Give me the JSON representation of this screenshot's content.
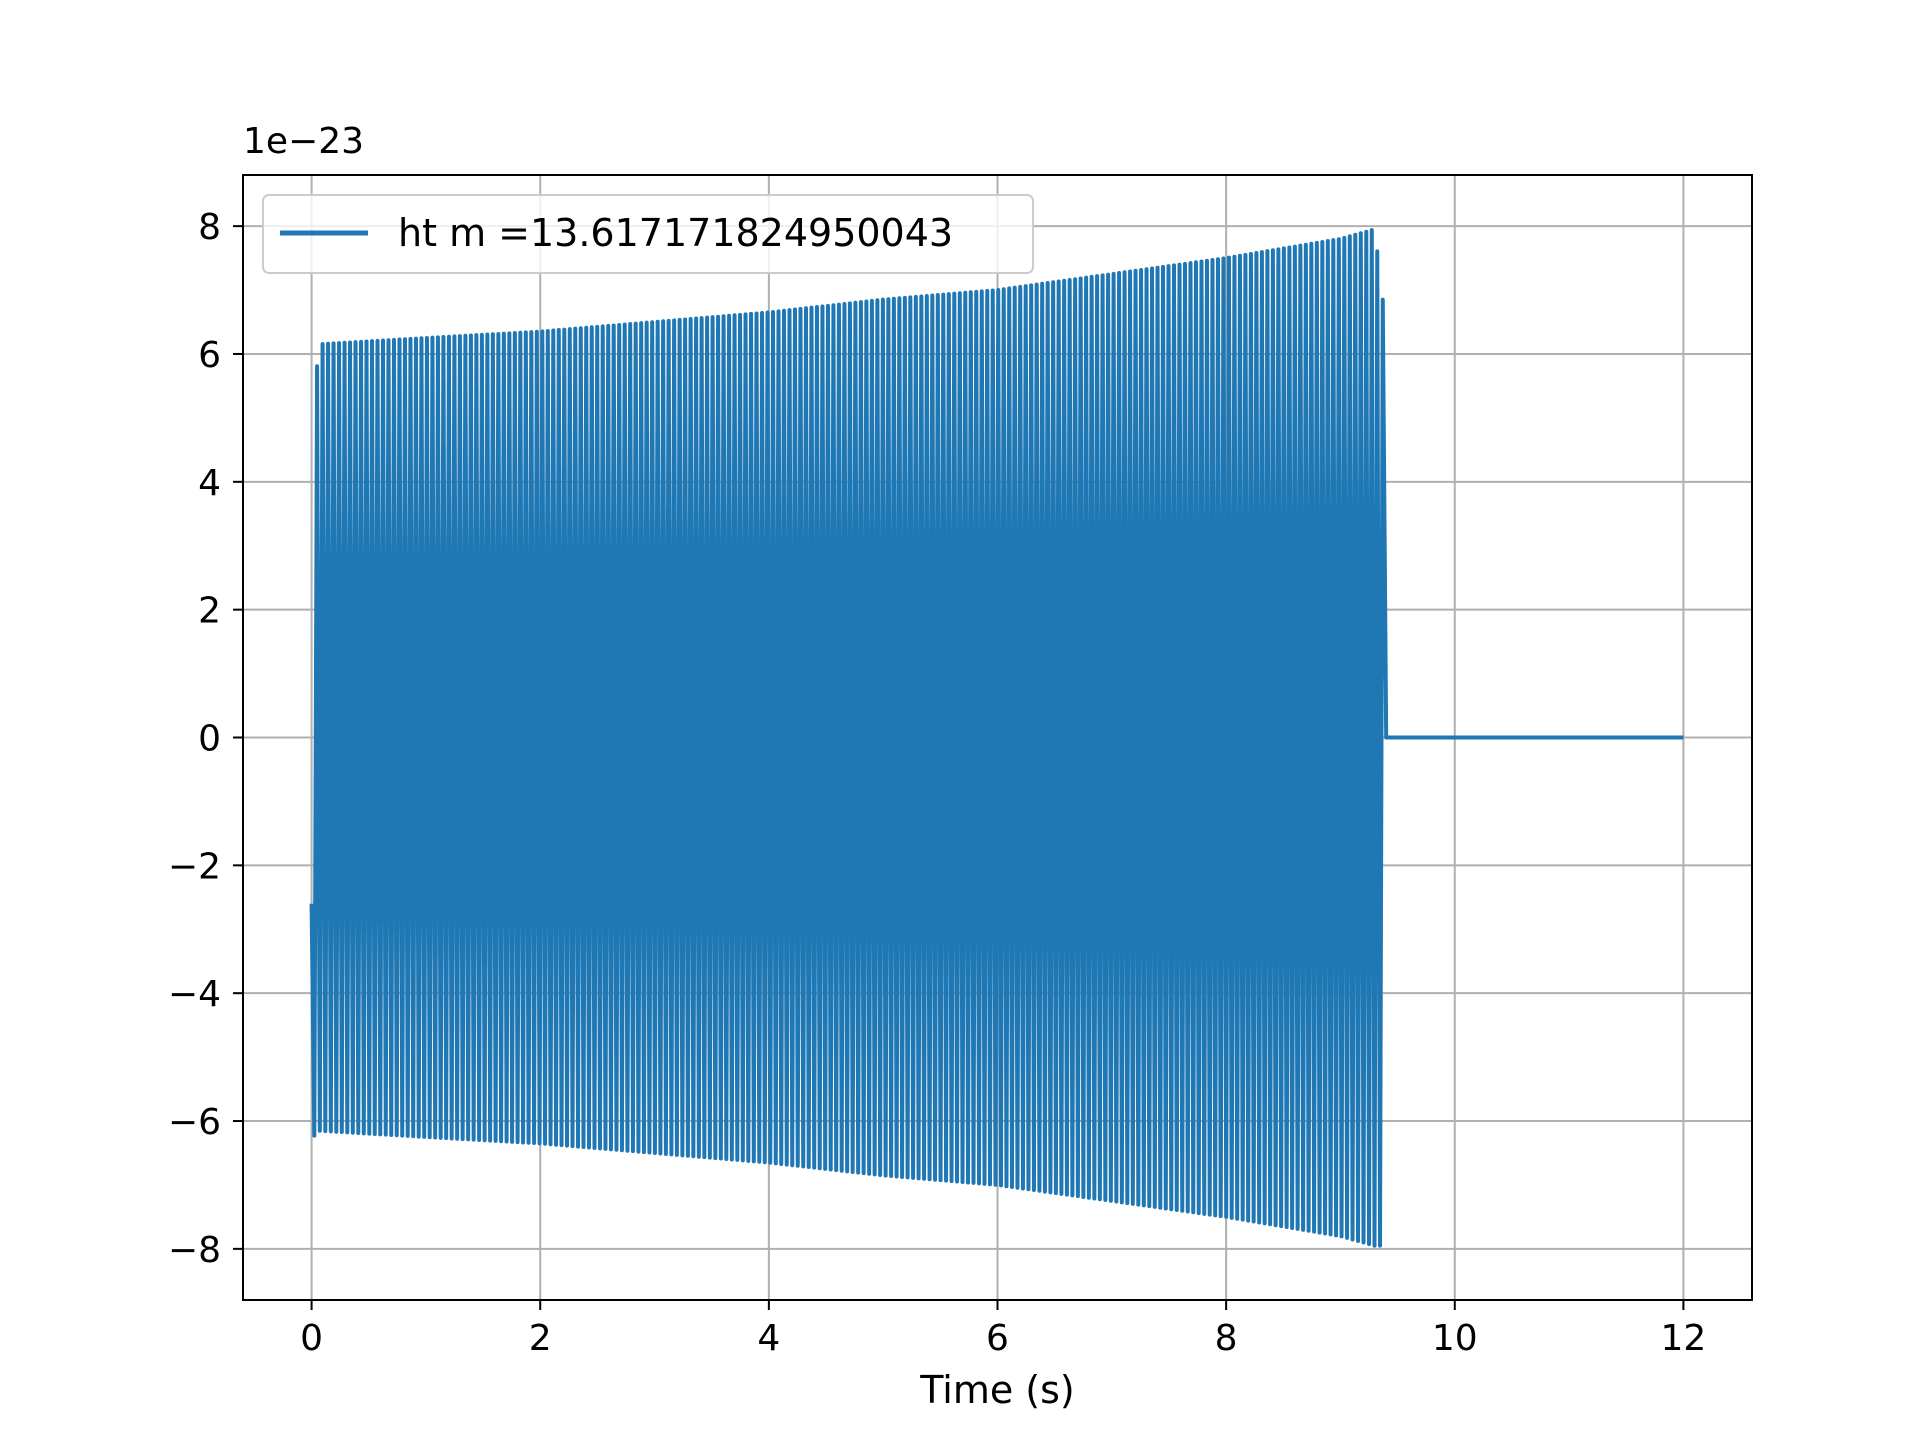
{
  "chart_data": {
    "type": "line",
    "title": "",
    "xlabel": "Time (s)",
    "ylabel": "",
    "y_offset_label": "1e−23",
    "xlim": [
      -0.6,
      12.6
    ],
    "ylim": [
      -8.8,
      8.8
    ],
    "x_ticks": [
      0,
      2,
      4,
      6,
      8,
      10,
      12
    ],
    "x_tick_labels": [
      "0",
      "2",
      "4",
      "6",
      "8",
      "10",
      "12"
    ],
    "y_ticks": [
      -8,
      -6,
      -4,
      -2,
      0,
      2,
      4,
      6,
      8
    ],
    "y_tick_labels": [
      "−8",
      "−6",
      "−4",
      "−2",
      "0",
      "2",
      "4",
      "6",
      "8"
    ],
    "grid": true,
    "legend_position": "upper-left",
    "series": [
      {
        "name": "ht m =13.617171824950043",
        "color": "#1f77b4",
        "description_points": {
          "x": [
            0.0,
            0.05,
            1.0,
            2.0,
            3.0,
            4.0,
            5.0,
            6.0,
            7.0,
            8.0,
            9.0,
            9.3,
            9.37,
            9.4,
            12.0
          ],
          "upper_envelope": [
            -2.6,
            6.15,
            6.25,
            6.35,
            6.5,
            6.65,
            6.85,
            7.0,
            7.25,
            7.5,
            7.8,
            7.95,
            6.85,
            0.0,
            0.0
          ],
          "lower_envelope": [
            -6.3,
            -6.15,
            -6.25,
            -6.35,
            -6.5,
            -6.65,
            -6.85,
            -7.0,
            -7.25,
            -7.5,
            -7.8,
            -7.95,
            -7.95,
            0.0,
            0.0
          ]
        }
      }
    ]
  }
}
